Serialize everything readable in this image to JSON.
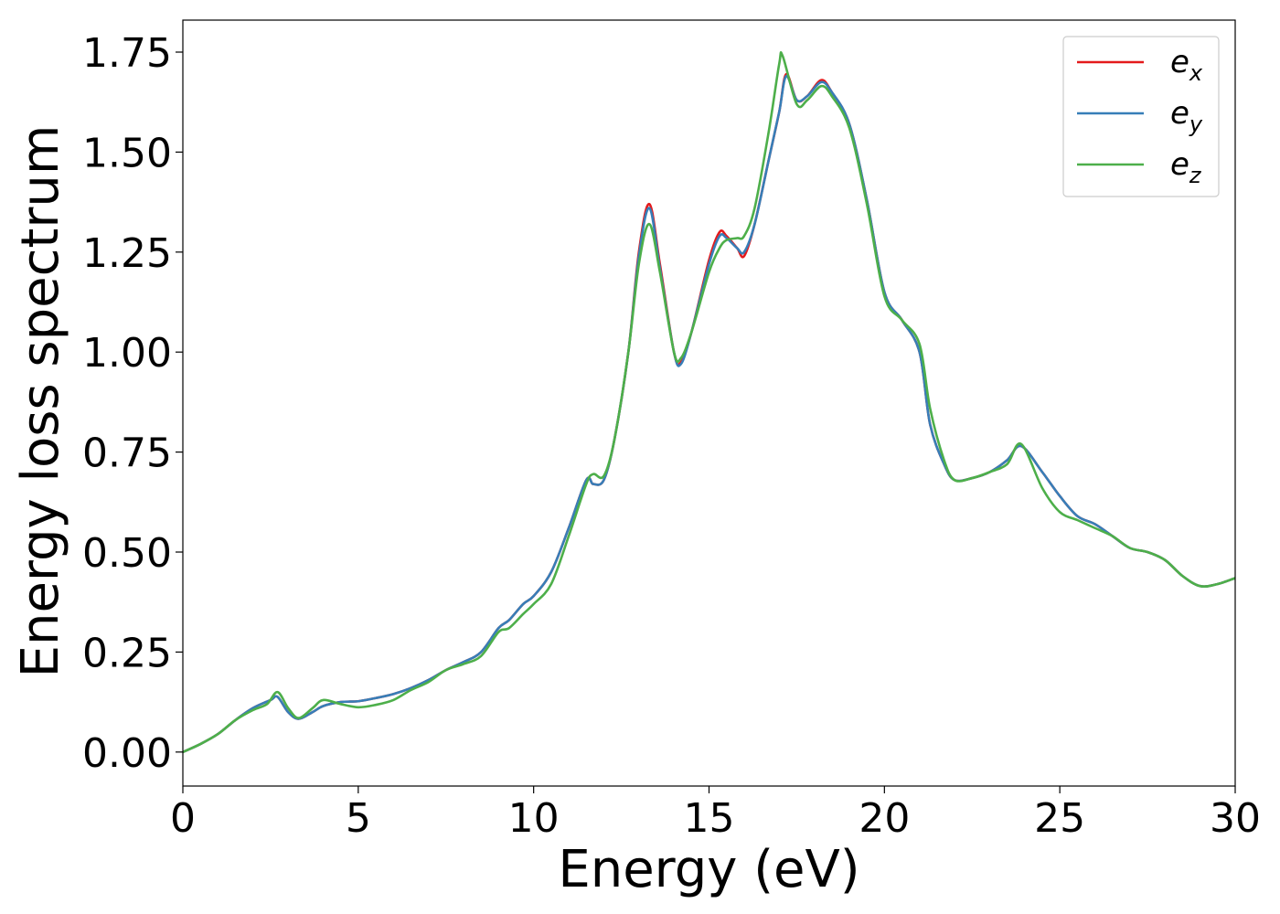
{
  "chart_data": {
    "type": "line",
    "xlabel": "Energy (eV)",
    "ylabel": "Energy loss spectrum",
    "xlim": [
      0,
      30
    ],
    "ylim": [
      -0.085,
      1.83
    ],
    "xticks": [
      0,
      5,
      10,
      15,
      20,
      25,
      30
    ],
    "yticks": [
      0.0,
      0.25,
      0.5,
      0.75,
      1.0,
      1.25,
      1.5,
      1.75
    ],
    "xtick_labels": [
      "0",
      "5",
      "10",
      "15",
      "20",
      "25",
      "30"
    ],
    "ytick_labels": [
      "0.00",
      "0.25",
      "0.50",
      "0.75",
      "1.00",
      "1.25",
      "1.50",
      "1.75"
    ],
    "grid": false,
    "legend_position": "top-right",
    "series": [
      {
        "name": "e_x",
        "label_base": "e",
        "label_sub": "x",
        "color": "#e41a1c",
        "points": [
          [
            0,
            0.0
          ],
          [
            0.5,
            0.02
          ],
          [
            1,
            0.045
          ],
          [
            1.5,
            0.08
          ],
          [
            2,
            0.11
          ],
          [
            2.5,
            0.13
          ],
          [
            2.7,
            0.138
          ],
          [
            3,
            0.1
          ],
          [
            3.3,
            0.083
          ],
          [
            3.7,
            0.1
          ],
          [
            4,
            0.115
          ],
          [
            4.5,
            0.125
          ],
          [
            5,
            0.127
          ],
          [
            5.5,
            0.135
          ],
          [
            6,
            0.145
          ],
          [
            6.5,
            0.16
          ],
          [
            7,
            0.18
          ],
          [
            7.5,
            0.205
          ],
          [
            8,
            0.225
          ],
          [
            8.5,
            0.25
          ],
          [
            9,
            0.31
          ],
          [
            9.3,
            0.33
          ],
          [
            9.7,
            0.37
          ],
          [
            10,
            0.39
          ],
          [
            10.5,
            0.45
          ],
          [
            11,
            0.56
          ],
          [
            11.5,
            0.68
          ],
          [
            11.7,
            0.67
          ],
          [
            12,
            0.68
          ],
          [
            12.3,
            0.78
          ],
          [
            12.7,
            1.0
          ],
          [
            13,
            1.25
          ],
          [
            13.3,
            1.37
          ],
          [
            13.6,
            1.22
          ],
          [
            14,
            1.0
          ],
          [
            14.2,
            0.975
          ],
          [
            14.5,
            1.05
          ],
          [
            15,
            1.23
          ],
          [
            15.3,
            1.3
          ],
          [
            15.5,
            1.29
          ],
          [
            15.8,
            1.26
          ],
          [
            16,
            1.24
          ],
          [
            16.3,
            1.32
          ],
          [
            16.7,
            1.48
          ],
          [
            17,
            1.6
          ],
          [
            17.2,
            1.695
          ],
          [
            17.5,
            1.63
          ],
          [
            17.8,
            1.64
          ],
          [
            18.2,
            1.68
          ],
          [
            18.5,
            1.65
          ],
          [
            19,
            1.57
          ],
          [
            19.5,
            1.38
          ],
          [
            20,
            1.15
          ],
          [
            20.5,
            1.08
          ],
          [
            21,
            1.0
          ],
          [
            21.3,
            0.82
          ],
          [
            21.7,
            0.72
          ],
          [
            22,
            0.68
          ],
          [
            22.5,
            0.685
          ],
          [
            23,
            0.7
          ],
          [
            23.5,
            0.73
          ],
          [
            23.9,
            0.765
          ],
          [
            24.5,
            0.7
          ],
          [
            25,
            0.64
          ],
          [
            25.5,
            0.59
          ],
          [
            26,
            0.57
          ],
          [
            26.5,
            0.54
          ],
          [
            27,
            0.51
          ],
          [
            27.5,
            0.5
          ],
          [
            28,
            0.48
          ],
          [
            28.5,
            0.44
          ],
          [
            29,
            0.415
          ],
          [
            29.5,
            0.42
          ],
          [
            30,
            0.435
          ]
        ]
      },
      {
        "name": "e_y",
        "label_base": "e",
        "label_sub": "y",
        "color": "#377eb8",
        "points": [
          [
            0,
            0.0
          ],
          [
            0.5,
            0.02
          ],
          [
            1,
            0.045
          ],
          [
            1.5,
            0.08
          ],
          [
            2,
            0.11
          ],
          [
            2.5,
            0.13
          ],
          [
            2.7,
            0.138
          ],
          [
            3,
            0.1
          ],
          [
            3.3,
            0.083
          ],
          [
            3.7,
            0.1
          ],
          [
            4,
            0.115
          ],
          [
            4.5,
            0.125
          ],
          [
            5,
            0.127
          ],
          [
            5.5,
            0.135
          ],
          [
            6,
            0.145
          ],
          [
            6.5,
            0.16
          ],
          [
            7,
            0.18
          ],
          [
            7.5,
            0.205
          ],
          [
            8,
            0.225
          ],
          [
            8.5,
            0.25
          ],
          [
            9,
            0.31
          ],
          [
            9.3,
            0.33
          ],
          [
            9.7,
            0.37
          ],
          [
            10,
            0.39
          ],
          [
            10.5,
            0.45
          ],
          [
            11,
            0.56
          ],
          [
            11.5,
            0.68
          ],
          [
            11.7,
            0.67
          ],
          [
            12,
            0.68
          ],
          [
            12.3,
            0.78
          ],
          [
            12.7,
            1.0
          ],
          [
            13,
            1.24
          ],
          [
            13.3,
            1.36
          ],
          [
            13.6,
            1.21
          ],
          [
            14,
            1.0
          ],
          [
            14.2,
            0.97
          ],
          [
            14.5,
            1.05
          ],
          [
            15,
            1.22
          ],
          [
            15.3,
            1.29
          ],
          [
            15.5,
            1.285
          ],
          [
            15.8,
            1.26
          ],
          [
            16,
            1.25
          ],
          [
            16.3,
            1.32
          ],
          [
            16.7,
            1.48
          ],
          [
            17,
            1.6
          ],
          [
            17.2,
            1.69
          ],
          [
            17.5,
            1.63
          ],
          [
            17.8,
            1.64
          ],
          [
            18.2,
            1.675
          ],
          [
            18.5,
            1.65
          ],
          [
            19,
            1.57
          ],
          [
            19.5,
            1.38
          ],
          [
            20,
            1.15
          ],
          [
            20.5,
            1.08
          ],
          [
            21,
            1.0
          ],
          [
            21.3,
            0.82
          ],
          [
            21.7,
            0.72
          ],
          [
            22,
            0.68
          ],
          [
            22.5,
            0.685
          ],
          [
            23,
            0.7
          ],
          [
            23.5,
            0.73
          ],
          [
            23.9,
            0.765
          ],
          [
            24.5,
            0.7
          ],
          [
            25,
            0.64
          ],
          [
            25.5,
            0.59
          ],
          [
            26,
            0.57
          ],
          [
            26.5,
            0.54
          ],
          [
            27,
            0.51
          ],
          [
            27.5,
            0.5
          ],
          [
            28,
            0.48
          ],
          [
            28.5,
            0.44
          ],
          [
            29,
            0.415
          ],
          [
            29.5,
            0.42
          ],
          [
            30,
            0.435
          ]
        ]
      },
      {
        "name": "e_z",
        "label_base": "e",
        "label_sub": "z",
        "color": "#4daf4a",
        "points": [
          [
            0,
            0.0
          ],
          [
            0.5,
            0.02
          ],
          [
            1,
            0.045
          ],
          [
            1.5,
            0.08
          ],
          [
            2,
            0.105
          ],
          [
            2.4,
            0.12
          ],
          [
            2.7,
            0.15
          ],
          [
            3,
            0.11
          ],
          [
            3.3,
            0.085
          ],
          [
            3.7,
            0.11
          ],
          [
            4,
            0.13
          ],
          [
            4.5,
            0.12
          ],
          [
            5,
            0.112
          ],
          [
            5.5,
            0.118
          ],
          [
            6,
            0.13
          ],
          [
            6.5,
            0.155
          ],
          [
            7,
            0.175
          ],
          [
            7.5,
            0.205
          ],
          [
            8,
            0.22
          ],
          [
            8.5,
            0.24
          ],
          [
            9,
            0.3
          ],
          [
            9.3,
            0.31
          ],
          [
            9.7,
            0.345
          ],
          [
            10,
            0.37
          ],
          [
            10.5,
            0.42
          ],
          [
            11,
            0.54
          ],
          [
            11.5,
            0.67
          ],
          [
            11.7,
            0.695
          ],
          [
            12,
            0.69
          ],
          [
            12.3,
            0.78
          ],
          [
            12.7,
            1.0
          ],
          [
            13,
            1.22
          ],
          [
            13.3,
            1.32
          ],
          [
            13.6,
            1.2
          ],
          [
            14,
            1.0
          ],
          [
            14.2,
            0.985
          ],
          [
            14.5,
            1.05
          ],
          [
            15,
            1.2
          ],
          [
            15.3,
            1.26
          ],
          [
            15.5,
            1.28
          ],
          [
            15.8,
            1.285
          ],
          [
            16,
            1.29
          ],
          [
            16.3,
            1.36
          ],
          [
            16.7,
            1.55
          ],
          [
            17,
            1.72
          ],
          [
            17.1,
            1.74
          ],
          [
            17.5,
            1.62
          ],
          [
            17.8,
            1.63
          ],
          [
            18.2,
            1.665
          ],
          [
            18.5,
            1.64
          ],
          [
            19,
            1.56
          ],
          [
            19.5,
            1.37
          ],
          [
            20,
            1.14
          ],
          [
            20.5,
            1.08
          ],
          [
            21,
            1.02
          ],
          [
            21.3,
            0.86
          ],
          [
            21.7,
            0.73
          ],
          [
            22,
            0.68
          ],
          [
            22.5,
            0.685
          ],
          [
            23,
            0.7
          ],
          [
            23.5,
            0.72
          ],
          [
            23.9,
            0.77
          ],
          [
            24.5,
            0.66
          ],
          [
            25,
            0.6
          ],
          [
            25.5,
            0.58
          ],
          [
            26,
            0.56
          ],
          [
            26.5,
            0.54
          ],
          [
            27,
            0.51
          ],
          [
            27.5,
            0.5
          ],
          [
            28,
            0.48
          ],
          [
            28.5,
            0.44
          ],
          [
            29,
            0.415
          ],
          [
            29.5,
            0.42
          ],
          [
            30,
            0.435
          ]
        ]
      }
    ]
  }
}
